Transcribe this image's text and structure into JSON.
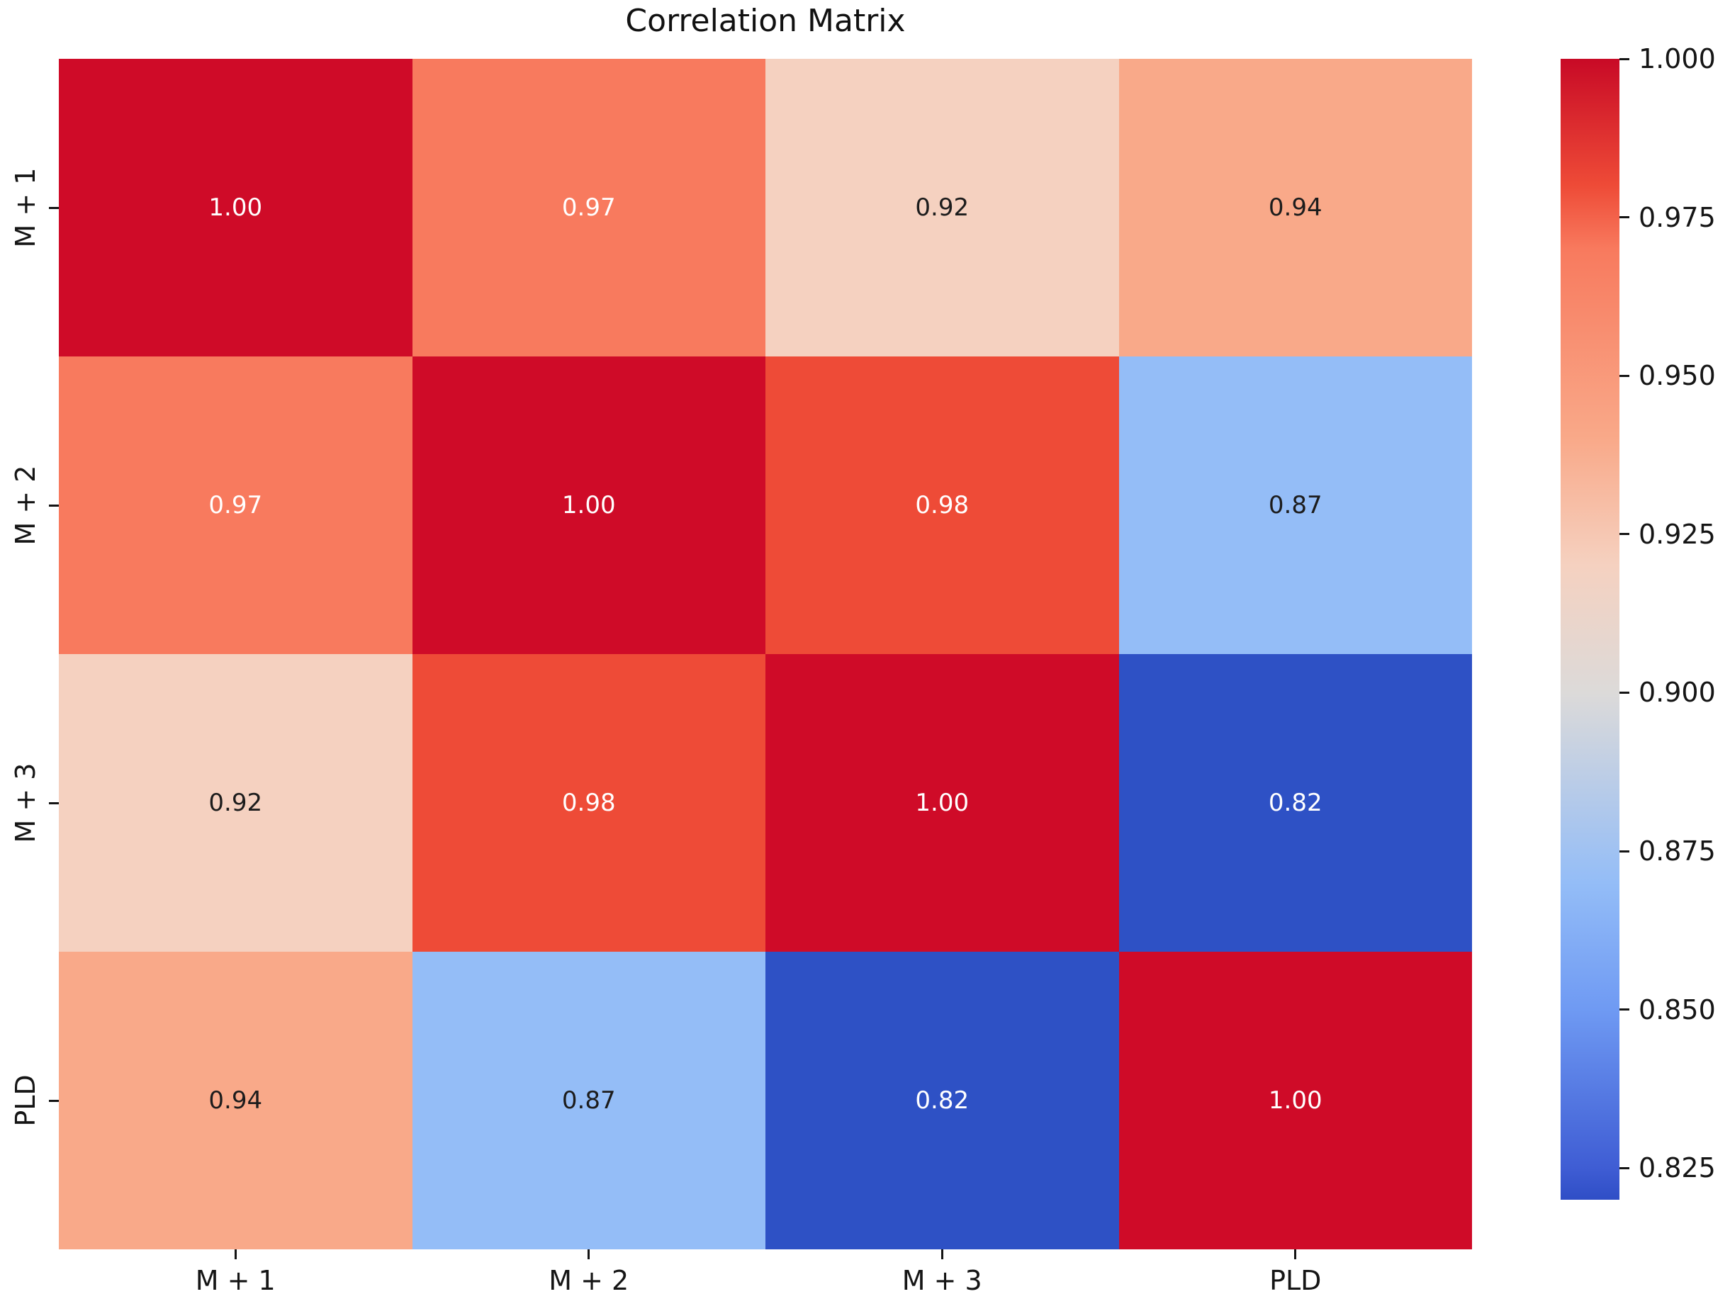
{
  "chart_data": {
    "type": "heatmap",
    "title": "Correlation Matrix",
    "x_labels": [
      "M + 1",
      "M + 2",
      "M + 3",
      "PLD"
    ],
    "y_labels": [
      "M + 1",
      "M + 2",
      "M + 3",
      "PLD"
    ],
    "matrix": [
      [
        1.0,
        0.97,
        0.92,
        0.94
      ],
      [
        0.97,
        1.0,
        0.98,
        0.87
      ],
      [
        0.92,
        0.98,
        1.0,
        0.82
      ],
      [
        0.94,
        0.87,
        0.82,
        1.0
      ]
    ],
    "cell_labels": [
      [
        "1.00",
        "0.97",
        "0.92",
        "0.94"
      ],
      [
        "0.97",
        "1.00",
        "0.98",
        "0.87"
      ],
      [
        "0.92",
        "0.98",
        "1.00",
        "0.82"
      ],
      [
        "0.94",
        "0.87",
        "0.82",
        "1.00"
      ]
    ],
    "cell_colors": [
      [
        "#cf0b28",
        "#f87a5e",
        "#f5d1c0",
        "#f9a989"
      ],
      [
        "#f87a5e",
        "#cf0b28",
        "#ee4b37",
        "#94bdf7"
      ],
      [
        "#f5d1c0",
        "#ee4b37",
        "#cf0b28",
        "#2e51c5"
      ],
      [
        "#f9a989",
        "#94bdf7",
        "#2e51c5",
        "#cf0b28"
      ]
    ],
    "cell_text_colors": [
      [
        "#ffffff",
        "#ffffff",
        "#1c1c1c",
        "#1c1c1c"
      ],
      [
        "#ffffff",
        "#ffffff",
        "#ffffff",
        "#1c1c1c"
      ],
      [
        "#1c1c1c",
        "#ffffff",
        "#ffffff",
        "#ffffff"
      ],
      [
        "#1c1c1c",
        "#1c1c1c",
        "#ffffff",
        "#ffffff"
      ]
    ],
    "colorbar": {
      "vmin": 0.82,
      "vmax": 1.0,
      "tick_labels": [
        "1.000",
        "0.975",
        "0.950",
        "0.925",
        "0.900",
        "0.875",
        "0.850",
        "0.825"
      ],
      "tick_values": [
        1.0,
        0.975,
        0.95,
        0.925,
        0.9,
        0.875,
        0.85,
        0.825
      ],
      "gradient_stops": [
        {
          "pos": 0.0,
          "color": "#c80a26"
        },
        {
          "pos": 0.111,
          "color": "#ee4b37"
        },
        {
          "pos": 0.167,
          "color": "#f87a5e"
        },
        {
          "pos": 0.333,
          "color": "#f9a989"
        },
        {
          "pos": 0.444,
          "color": "#f5d1c0"
        },
        {
          "pos": 0.556,
          "color": "#dcdad9"
        },
        {
          "pos": 0.722,
          "color": "#94bdf7"
        },
        {
          "pos": 0.833,
          "color": "#6f9af3"
        },
        {
          "pos": 0.972,
          "color": "#3f5dd4"
        },
        {
          "pos": 1.0,
          "color": "#2f4ec6"
        }
      ],
      "position": "right"
    },
    "grid": false,
    "annotated": true
  },
  "colors": {
    "background": "#ffffff",
    "tick_text": "#151515",
    "annot_light": "#ffffff",
    "annot_dark": "#1c1c1c"
  }
}
